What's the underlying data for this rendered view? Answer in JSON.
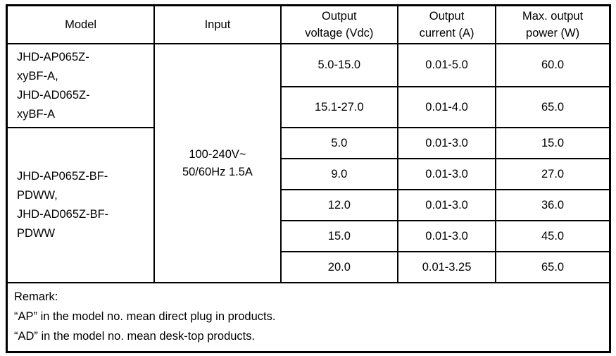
{
  "table": {
    "headers": {
      "model": "Model",
      "input": "Input",
      "output_voltage": "Output\nvoltage (Vdc)",
      "output_current": "Output\ncurrent (A)",
      "max_output_power": "Max. output\npower (W)"
    },
    "model_groups": [
      {
        "label": "JHD-AP065Z-\nxyBF-A,\nJHD-AD065Z-\nxyBF-A"
      },
      {
        "label": "JHD-AP065Z-BF-\nPDWW,\nJHD-AD065Z-BF-\nPDWW"
      }
    ],
    "input_value": "100-240V~\n50/60Hz 1.5A",
    "rows": [
      {
        "voltage": "5.0-15.0",
        "current": "0.01-5.0",
        "power": "60.0"
      },
      {
        "voltage": "15.1-27.0",
        "current": "0.01-4.0",
        "power": "65.0"
      },
      {
        "voltage": "5.0",
        "current": "0.01-3.0",
        "power": "15.0"
      },
      {
        "voltage": "9.0",
        "current": "0.01-3.0",
        "power": "27.0"
      },
      {
        "voltage": "12.0",
        "current": "0.01-3.0",
        "power": "36.0"
      },
      {
        "voltage": "15.0",
        "current": "0.01-3.0",
        "power": "45.0"
      },
      {
        "voltage": "20.0",
        "current": "0.01-3.25",
        "power": "65.0"
      }
    ],
    "remark": {
      "title": "Remark:",
      "lines": [
        "“AP” in the model no. mean direct plug in products.",
        "“AD” in the model no. mean desk-top products."
      ]
    },
    "colors": {
      "border": "#000000",
      "text": "#000000",
      "background": "#ffffff"
    }
  }
}
